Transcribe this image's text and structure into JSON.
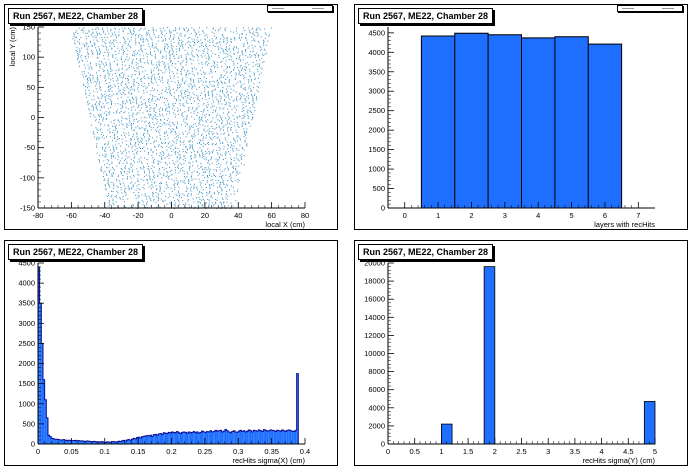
{
  "chart_data": [
    {
      "type": "scatter",
      "title": "Run 2567, ME22, Chamber 28",
      "xlabel": "local X (cm)",
      "ylabel": "local Y (cm)",
      "xlim": [
        -80,
        80
      ],
      "ylim": [
        -150,
        150
      ],
      "xticks": [
        -80,
        -60,
        -40,
        -20,
        0,
        20,
        40,
        60,
        80
      ],
      "yticks": [
        -150,
        -100,
        -50,
        0,
        50,
        100,
        150
      ],
      "trapezoid_outline": {
        "y": [
          -150,
          150
        ],
        "half_width": [
          37,
          60
        ]
      },
      "marker_color": "#3a8fc0"
    },
    {
      "type": "bar",
      "title": "Run 2567, ME22, Chamber 28",
      "xlabel": "layers with recHits",
      "ylabel": "",
      "categories": [
        1,
        2,
        3,
        4,
        5,
        6
      ],
      "values": [
        4420,
        4490,
        4450,
        4370,
        4400,
        4210
      ],
      "xlim": [
        -0.5,
        7.5
      ],
      "ylim": [
        0,
        4650
      ],
      "xticks": [
        0,
        1,
        2,
        3,
        4,
        5,
        6,
        7
      ],
      "yticks": [
        0,
        500,
        1000,
        1500,
        2000,
        2500,
        3000,
        3500,
        4000,
        4500
      ],
      "fill_color": "#1f6fff"
    },
    {
      "type": "bar",
      "title": "Run 2567, ME22, Chamber 28",
      "xlabel": "recHits sigma(X) (cm)",
      "ylabel": "",
      "bin_width": 0.0025,
      "xlim": [
        0,
        0.4
      ],
      "ylim": [
        0,
        4500
      ],
      "xticks": [
        0,
        0.05,
        0.1,
        0.15,
        0.2,
        0.25,
        0.3,
        0.35,
        0.4
      ],
      "xtick_labels": [
        "0",
        "0.05",
        "0.1",
        "0.15",
        "0.2",
        "0.25",
        "0.3",
        "0.35",
        "0.4"
      ],
      "yticks": [
        0,
        500,
        1000,
        1500,
        2000,
        2500,
        3000,
        3500,
        4000,
        4500
      ],
      "values": [
        4400,
        3500,
        2500,
        1600,
        1100,
        650,
        220,
        180,
        140,
        130,
        120,
        120,
        110,
        100,
        100,
        110,
        95,
        90,
        95,
        90,
        85,
        85,
        90,
        80,
        85,
        75,
        80,
        70,
        65,
        75,
        70,
        60,
        55,
        65,
        60,
        50,
        55,
        50,
        60,
        45,
        40,
        55,
        50,
        45,
        55,
        60,
        50,
        55,
        70,
        60,
        80,
        90,
        75,
        100,
        110,
        95,
        120,
        140,
        130,
        160,
        170,
        150,
        180,
        190,
        200,
        210,
        200,
        220,
        190,
        230,
        240,
        220,
        250,
        260,
        240,
        280,
        270,
        260,
        290,
        280,
        300,
        280,
        290,
        310,
        280,
        260,
        290,
        300,
        290,
        270,
        300,
        280,
        290,
        310,
        280,
        300,
        270,
        290,
        320,
        300,
        290,
        310,
        300,
        330,
        300,
        310,
        340,
        320,
        330,
        340,
        300,
        320,
        360,
        330,
        300,
        280,
        310,
        330,
        300,
        290,
        320,
        340,
        310,
        330,
        300,
        320,
        350,
        330,
        300,
        340,
        330,
        320,
        350,
        330,
        310,
        360,
        340,
        320,
        330,
        350,
        340,
        330,
        310,
        340,
        330,
        320,
        350,
        330,
        310,
        340,
        350,
        330,
        320,
        310,
        340,
        1750
      ],
      "fill_color": "#1f6fff"
    },
    {
      "type": "bar",
      "title": "Run 2567, ME22, Chamber 28",
      "xlabel": "recHits sigma(Y) (cm)",
      "ylabel": "",
      "bins": [
        {
          "x0": 1.0,
          "x1": 1.2,
          "value": 2200
        },
        {
          "x0": 1.8,
          "x1": 2.0,
          "value": 19600
        },
        {
          "x0": 4.8,
          "x1": 5.0,
          "value": 4700
        }
      ],
      "xlim": [
        0,
        5
      ],
      "ylim": [
        0,
        20000
      ],
      "xticks": [
        0,
        0.5,
        1,
        1.5,
        2,
        2.5,
        3,
        3.5,
        4,
        4.5,
        5
      ],
      "xtick_labels": [
        "0",
        "0.5",
        "1",
        "1.5",
        "2",
        "2.5",
        "3",
        "3.5",
        "4",
        "4.5",
        "5"
      ],
      "yticks": [
        0,
        2000,
        4000,
        6000,
        8000,
        10000,
        12000,
        14000,
        16000,
        18000,
        20000
      ],
      "fill_color": "#1f6fff"
    }
  ]
}
